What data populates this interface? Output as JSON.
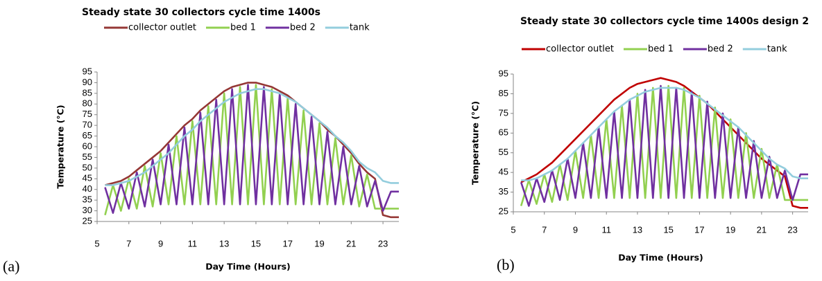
{
  "chart_data": [
    {
      "type": "line",
      "title": "Steady state 30 collectors cycle time 1400s",
      "panel_label": "(a)",
      "x_label": "Day Time (Hours)",
      "y_label": "Temperature (°C)",
      "xlim": [
        5,
        24
      ],
      "ylim": [
        25,
        95
      ],
      "xticks": [
        5,
        7,
        9,
        11,
        13,
        15,
        17,
        19,
        21,
        23
      ],
      "yticks": [
        25,
        30,
        35,
        40,
        45,
        50,
        55,
        60,
        65,
        70,
        75,
        80,
        85,
        90,
        95
      ],
      "x": [
        5.5,
        6,
        6.5,
        7,
        7.5,
        8,
        8.5,
        9,
        9.5,
        10,
        10.5,
        11,
        11.5,
        12,
        12.5,
        13,
        13.5,
        14,
        14.5,
        15,
        15.5,
        16,
        16.5,
        17,
        17.5,
        18,
        18.5,
        19,
        19.5,
        20,
        20.5,
        21,
        21.5,
        22,
        22.5,
        23,
        23.5,
        24
      ],
      "series": [
        {
          "name": "collector outlet",
          "color": "#953735",
          "values": [
            42,
            43,
            44,
            46,
            49,
            52,
            55,
            58,
            62,
            66,
            70,
            73,
            77,
            80,
            83,
            86,
            88,
            89,
            90,
            90,
            89,
            88,
            86,
            84,
            81,
            78,
            75,
            72,
            68,
            65,
            61,
            57,
            52,
            48,
            45,
            28,
            27,
            27
          ]
        },
        {
          "name": "bed 1",
          "color": "#92d050",
          "values": [
            28,
            42,
            30,
            45,
            31,
            51,
            32,
            57,
            33,
            65,
            33,
            72,
            33,
            79,
            33,
            85,
            33,
            88,
            33,
            89,
            33,
            87,
            33,
            83,
            33,
            77,
            33,
            71,
            33,
            64,
            33,
            56,
            32,
            47,
            31,
            31,
            31,
            31
          ]
        },
        {
          "name": "bed 2",
          "color": "#7030a0",
          "values": [
            41,
            29,
            43,
            31,
            48,
            32,
            54,
            33,
            61,
            33,
            69,
            33,
            76,
            33,
            82,
            33,
            87,
            33,
            89,
            33,
            88,
            33,
            85,
            33,
            80,
            33,
            74,
            33,
            67,
            33,
            60,
            33,
            51,
            32,
            44,
            30,
            39,
            39
          ]
        },
        {
          "name": "tank",
          "color": "#93cddd",
          "values": [
            42,
            42,
            43,
            44,
            46,
            48,
            51,
            54,
            57,
            61,
            65,
            68,
            72,
            75,
            78,
            81,
            83,
            85,
            86,
            87,
            87,
            86,
            85,
            83,
            81,
            78,
            75,
            72,
            69,
            65,
            62,
            58,
            53,
            50,
            48,
            44,
            43,
            43
          ]
        }
      ]
    },
    {
      "type": "line",
      "title": "Steady state 30 collectors cycle time 1400s design 2",
      "panel_label": "(b)",
      "x_label": "Day Time (Hours)",
      "y_label": "Temperature (°C)",
      "xlim": [
        5,
        24
      ],
      "ylim": [
        25,
        95
      ],
      "xticks": [
        5,
        7,
        9,
        11,
        13,
        15,
        17,
        19,
        21,
        23
      ],
      "yticks": [
        25,
        35,
        45,
        55,
        65,
        75,
        85,
        95
      ],
      "x": [
        5.5,
        6,
        6.5,
        7,
        7.5,
        8,
        8.5,
        9,
        9.5,
        10,
        10.5,
        11,
        11.5,
        12,
        12.5,
        13,
        13.5,
        14,
        14.5,
        15,
        15.5,
        16,
        16.5,
        17,
        17.5,
        18,
        18.5,
        19,
        19.5,
        20,
        20.5,
        21,
        21.5,
        22,
        22.5,
        23,
        23.5,
        24
      ],
      "series": [
        {
          "name": "collector outlet",
          "color": "#c00000",
          "values": [
            40,
            42,
            44,
            47,
            50,
            54,
            58,
            62,
            66,
            70,
            74,
            78,
            82,
            85,
            88,
            90,
            91,
            92,
            93,
            92,
            91,
            89,
            86,
            83,
            80,
            76,
            72,
            68,
            64,
            60,
            56,
            52,
            49,
            46,
            43,
            28,
            27,
            27
          ]
        },
        {
          "name": "bed 1",
          "color": "#92d050",
          "values": [
            28,
            41,
            29,
            44,
            30,
            49,
            31,
            56,
            32,
            64,
            32,
            72,
            32,
            79,
            32,
            85,
            32,
            88,
            32,
            89,
            32,
            88,
            32,
            84,
            32,
            78,
            32,
            72,
            32,
            65,
            32,
            57,
            32,
            49,
            31,
            31,
            31,
            31
          ]
        },
        {
          "name": "bed 2",
          "color": "#7030a0",
          "values": [
            40,
            28,
            42,
            30,
            46,
            31,
            52,
            32,
            60,
            32,
            68,
            32,
            76,
            32,
            82,
            32,
            87,
            32,
            89,
            32,
            88,
            32,
            86,
            32,
            81,
            32,
            75,
            32,
            68,
            32,
            61,
            32,
            53,
            32,
            46,
            31,
            44,
            44
          ]
        },
        {
          "name": "tank",
          "color": "#93cddd",
          "values": [
            41,
            41,
            42,
            44,
            46,
            49,
            52,
            56,
            60,
            64,
            68,
            72,
            76,
            79,
            82,
            84,
            86,
            87,
            88,
            88,
            88,
            87,
            85,
            83,
            80,
            77,
            74,
            71,
            68,
            64,
            60,
            56,
            52,
            49,
            47,
            43,
            42,
            42
          ]
        }
      ]
    }
  ]
}
